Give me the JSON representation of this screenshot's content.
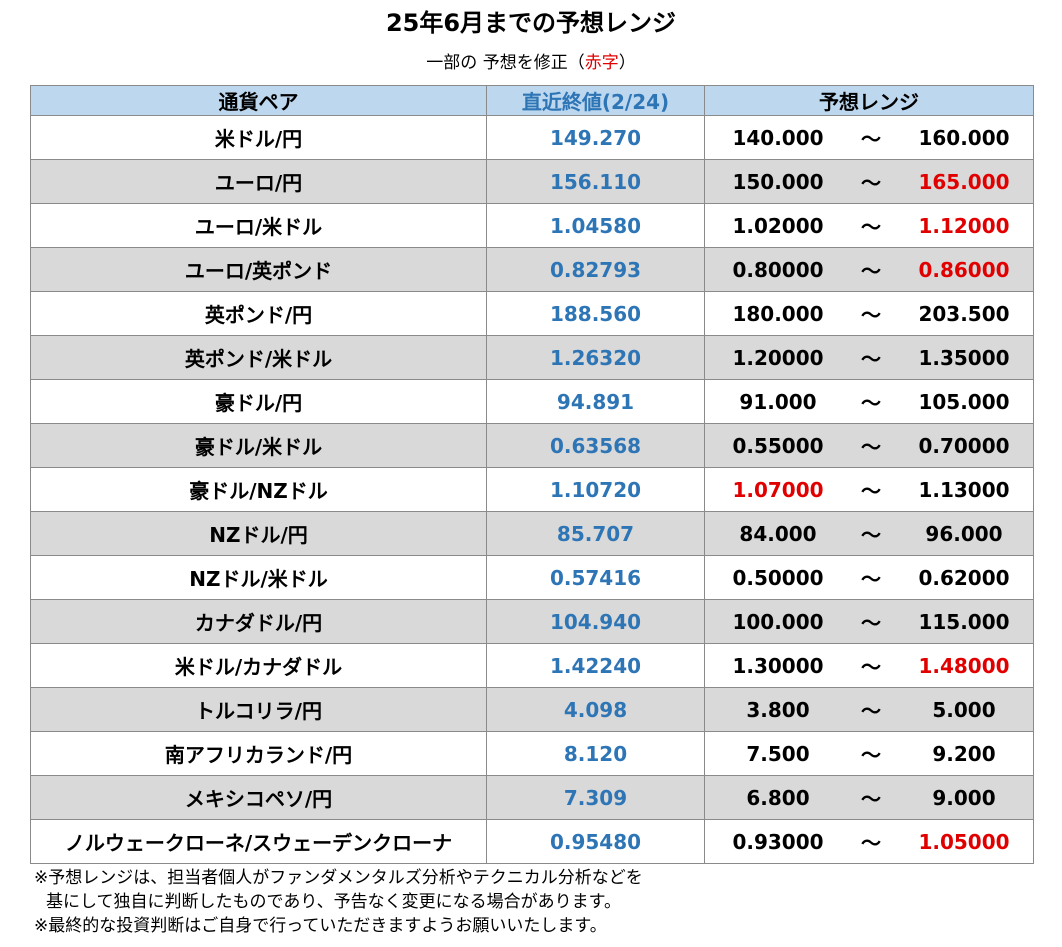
{
  "title": "25年6月までの予想レンジ",
  "subtitle": {
    "prefix": "一部の 予想を修正（",
    "highlight": "赤字",
    "suffix": "）"
  },
  "colors": {
    "header_bg": "#bdd7ee",
    "latest_blue": "#2e75b6",
    "revised_red": "#e00000",
    "row_shade": "#d9d9d9"
  },
  "table": {
    "headers": {
      "pair": "通貨ペア",
      "latest": "直近終値(2/24)",
      "range": "予想レンジ"
    },
    "separator": "～",
    "rows": [
      {
        "pair": "米ドル/円",
        "latest": "149.270",
        "low": "140.000",
        "high": "160.000",
        "low_revised": false,
        "high_revised": false
      },
      {
        "pair": "ユーロ/円",
        "latest": "156.110",
        "low": "150.000",
        "high": "165.000",
        "low_revised": false,
        "high_revised": true
      },
      {
        "pair": "ユーロ/米ドル",
        "latest": "1.04580",
        "low": "1.02000",
        "high": "1.12000",
        "low_revised": false,
        "high_revised": true
      },
      {
        "pair": "ユーロ/英ポンド",
        "latest": "0.82793",
        "low": "0.80000",
        "high": "0.86000",
        "low_revised": false,
        "high_revised": true
      },
      {
        "pair": "英ポンド/円",
        "latest": "188.560",
        "low": "180.000",
        "high": "203.500",
        "low_revised": false,
        "high_revised": false
      },
      {
        "pair": "英ポンド/米ドル",
        "latest": "1.26320",
        "low": "1.20000",
        "high": "1.35000",
        "low_revised": false,
        "high_revised": false
      },
      {
        "pair": "豪ドル/円",
        "latest": "94.891",
        "low": "91.000",
        "high": "105.000",
        "low_revised": false,
        "high_revised": false
      },
      {
        "pair": "豪ドル/米ドル",
        "latest": "0.63568",
        "low": "0.55000",
        "high": "0.70000",
        "low_revised": false,
        "high_revised": false
      },
      {
        "pair": "豪ドル/NZドル",
        "latest": "1.10720",
        "low": "1.07000",
        "high": "1.13000",
        "low_revised": true,
        "high_revised": false
      },
      {
        "pair": "NZドル/円",
        "latest": "85.707",
        "low": "84.000",
        "high": "96.000",
        "low_revised": false,
        "high_revised": false
      },
      {
        "pair": "NZドル/米ドル",
        "latest": "0.57416",
        "low": "0.50000",
        "high": "0.62000",
        "low_revised": false,
        "high_revised": false
      },
      {
        "pair": "カナダドル/円",
        "latest": "104.940",
        "low": "100.000",
        "high": "115.000",
        "low_revised": false,
        "high_revised": false
      },
      {
        "pair": "米ドル/カナダドル",
        "latest": "1.42240",
        "low": "1.30000",
        "high": "1.48000",
        "low_revised": false,
        "high_revised": true
      },
      {
        "pair": "トルコリラ/円",
        "latest": "4.098",
        "low": "3.800",
        "high": "5.000",
        "low_revised": false,
        "high_revised": false
      },
      {
        "pair": "南アフリカランド/円",
        "latest": "8.120",
        "low": "7.500",
        "high": "9.200",
        "low_revised": false,
        "high_revised": false
      },
      {
        "pair": "メキシコペソ/円",
        "latest": "7.309",
        "low": "6.800",
        "high": "9.000",
        "low_revised": false,
        "high_revised": false
      },
      {
        "pair": "ノルウェークローネ/スウェーデンクローナ",
        "latest": "0.95480",
        "low": "0.93000",
        "high": "1.05000",
        "low_revised": false,
        "high_revised": true
      }
    ]
  },
  "notes": [
    "※予想レンジは、担当者個人がファンダメンタルズ分析やテクニカル分析などを",
    "基にして独自に判断したものであり、予告なく変更になる場合があります。",
    "※最終的な投資判断はご自身で行っていただきますようお願いいたします。"
  ]
}
